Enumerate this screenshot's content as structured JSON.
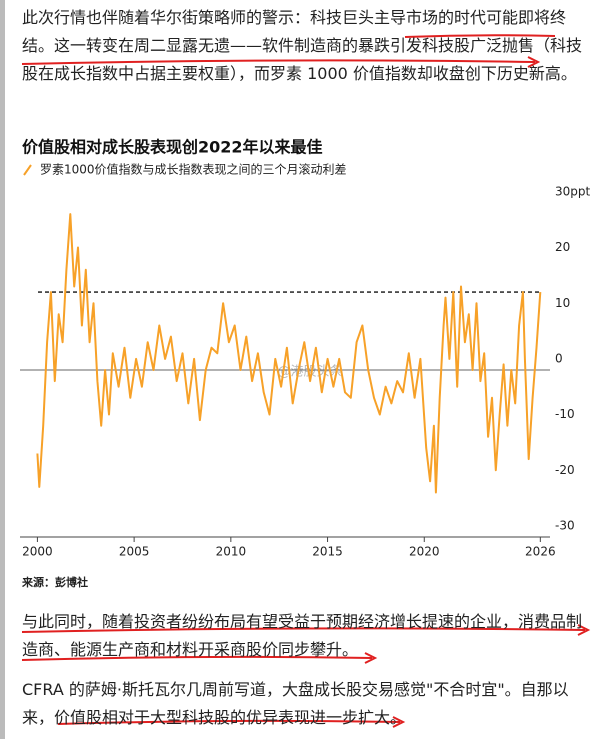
{
  "paragraphs": [
    "此次行情也伴随着华尔街策略师的警示：科技巨头主导市场的时代可能即将终结。这一转变在周二显露无遗——软件制造商的暴跌引发科技股广泛抛售（科技股在成长指数中占据主要权重），而罗素 1000 价值指数却收盘创下历史新高。",
    "与此同时，随着投资者纷纷布局有望受益于预期经济增长提速的企业，消费品制造商、能源生产商和材料开采商股价同步攀升。",
    "CFRA 的萨姆·斯托瓦尔几周前写道，大盘成长股交易感觉\"不合时宜\"。自那以来，价值股相对于大型科技股的优异表现进一步扩大。"
  ],
  "chart_data": {
    "type": "line",
    "title": "价值股相对成长股表现创2022年以来最佳",
    "source": "来源：彭博社",
    "watermark": "@港股头条",
    "x": [
      2000.0,
      2000.1,
      2000.3,
      2000.5,
      2000.7,
      2000.9,
      2001.1,
      2001.3,
      2001.5,
      2001.7,
      2001.9,
      2002.1,
      2002.3,
      2002.5,
      2002.7,
      2002.9,
      2003.1,
      2003.3,
      2003.5,
      2003.7,
      2003.9,
      2004.2,
      2004.5,
      2004.8,
      2005.1,
      2005.4,
      2005.7,
      2006.0,
      2006.3,
      2006.6,
      2006.9,
      2007.2,
      2007.5,
      2007.8,
      2008.1,
      2008.4,
      2008.7,
      2009.0,
      2009.3,
      2009.6,
      2009.9,
      2010.2,
      2010.5,
      2010.8,
      2011.1,
      2011.4,
      2011.7,
      2012.0,
      2012.3,
      2012.6,
      2012.9,
      2013.2,
      2013.5,
      2013.8,
      2014.1,
      2014.4,
      2014.7,
      2015.0,
      2015.3,
      2015.6,
      2015.9,
      2016.2,
      2016.5,
      2016.8,
      2017.1,
      2017.4,
      2017.7,
      2018.0,
      2018.3,
      2018.6,
      2018.9,
      2019.2,
      2019.5,
      2019.8,
      2020.1,
      2020.3,
      2020.5,
      2020.6,
      2020.8,
      2021.0,
      2021.1,
      2021.3,
      2021.5,
      2021.7,
      2021.9,
      2022.1,
      2022.3,
      2022.5,
      2022.7,
      2022.9,
      2023.1,
      2023.3,
      2023.5,
      2023.7,
      2023.9,
      2024.1,
      2024.3,
      2024.5,
      2024.7,
      2024.9,
      2025.1,
      2025.2,
      2025.4,
      2025.6,
      2025.8,
      2026.0
    ],
    "series": [
      {
        "name": "罗素1000价值指数与成长指数表现之间的三个月滚动利差",
        "color": "#f7a128",
        "values": [
          -15,
          -21,
          -10,
          5,
          14,
          -2,
          10,
          5,
          18,
          28,
          15,
          22,
          8,
          18,
          5,
          12,
          -2,
          -10,
          0,
          -8,
          3,
          -3,
          4,
          -5,
          2,
          -3,
          5,
          0,
          8,
          2,
          6,
          -2,
          3,
          -6,
          2,
          -9,
          0,
          4,
          3,
          12,
          5,
          8,
          0,
          6,
          -2,
          3,
          -4,
          -8,
          2,
          -3,
          4,
          -6,
          0,
          5,
          -2,
          4,
          -4,
          2,
          -3,
          2,
          -4,
          -5,
          5,
          8,
          0,
          -5,
          -8,
          -3,
          -6,
          -2,
          -4,
          3,
          -5,
          2,
          -14,
          -20,
          -10,
          -22,
          -5,
          8,
          13,
          2,
          14,
          -3,
          15,
          5,
          10,
          0,
          12,
          -2,
          3,
          -12,
          -5,
          -18,
          -8,
          1,
          -10,
          0,
          -6,
          8,
          14,
          2,
          -16,
          -5,
          4,
          14
        ]
      }
    ],
    "reference_line": 14,
    "xlim": [
      1999.1,
      2026.5
    ],
    "xticks": [
      2000,
      2005,
      2010,
      2015,
      2020,
      2026
    ],
    "ylim": [
      -30,
      30
    ],
    "yticks": [
      {
        "value": 30,
        "label": "30ppt"
      },
      20,
      10,
      0,
      -10,
      -20,
      -30
    ]
  }
}
